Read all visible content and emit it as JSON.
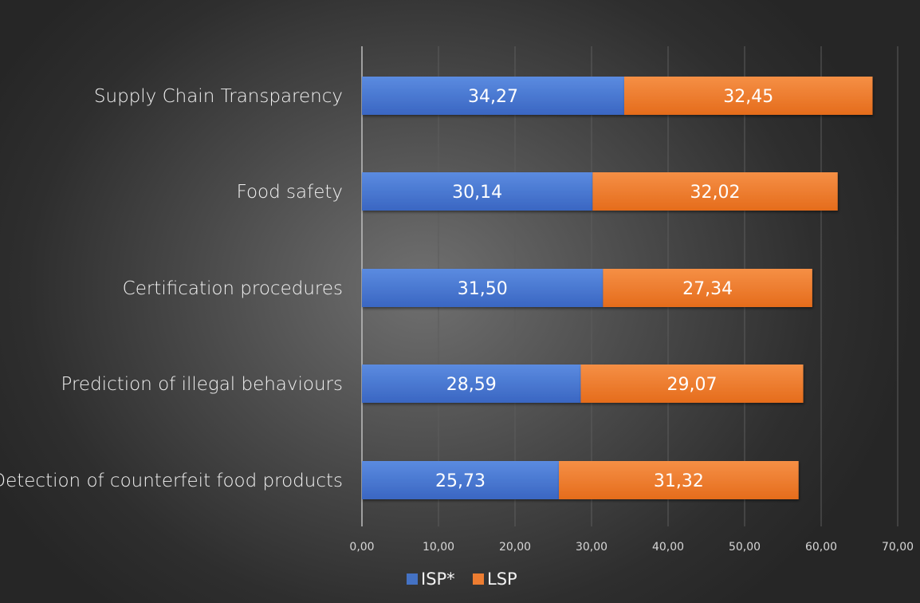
{
  "chart_data": {
    "type": "bar",
    "orientation": "horizontal",
    "stacked": true,
    "categories": [
      "Supply Chain Transparency",
      "Food safety",
      "Certification procedures",
      "Prediction of illegal behaviours",
      "Detection of counterfeit food products"
    ],
    "series": [
      {
        "name": "ISP*",
        "color": "#4472c4",
        "values": [
          34.27,
          30.14,
          31.5,
          28.59,
          25.73
        ],
        "labels": [
          "34,27",
          "30,14",
          "31,50",
          "28,59",
          "25,73"
        ]
      },
      {
        "name": "LSP",
        "color": "#ed7d31",
        "values": [
          32.45,
          32.02,
          27.34,
          29.07,
          31.32
        ],
        "labels": [
          "32,45",
          "32,02",
          "27,34",
          "29,07",
          "31,32"
        ]
      }
    ],
    "xlim": [
      0,
      70
    ],
    "ticks": [
      "0,00",
      "10,00",
      "20,00",
      "30,00",
      "40,00",
      "50,00",
      "60,00",
      "70,00"
    ],
    "grid": true,
    "legend": "bottom"
  }
}
